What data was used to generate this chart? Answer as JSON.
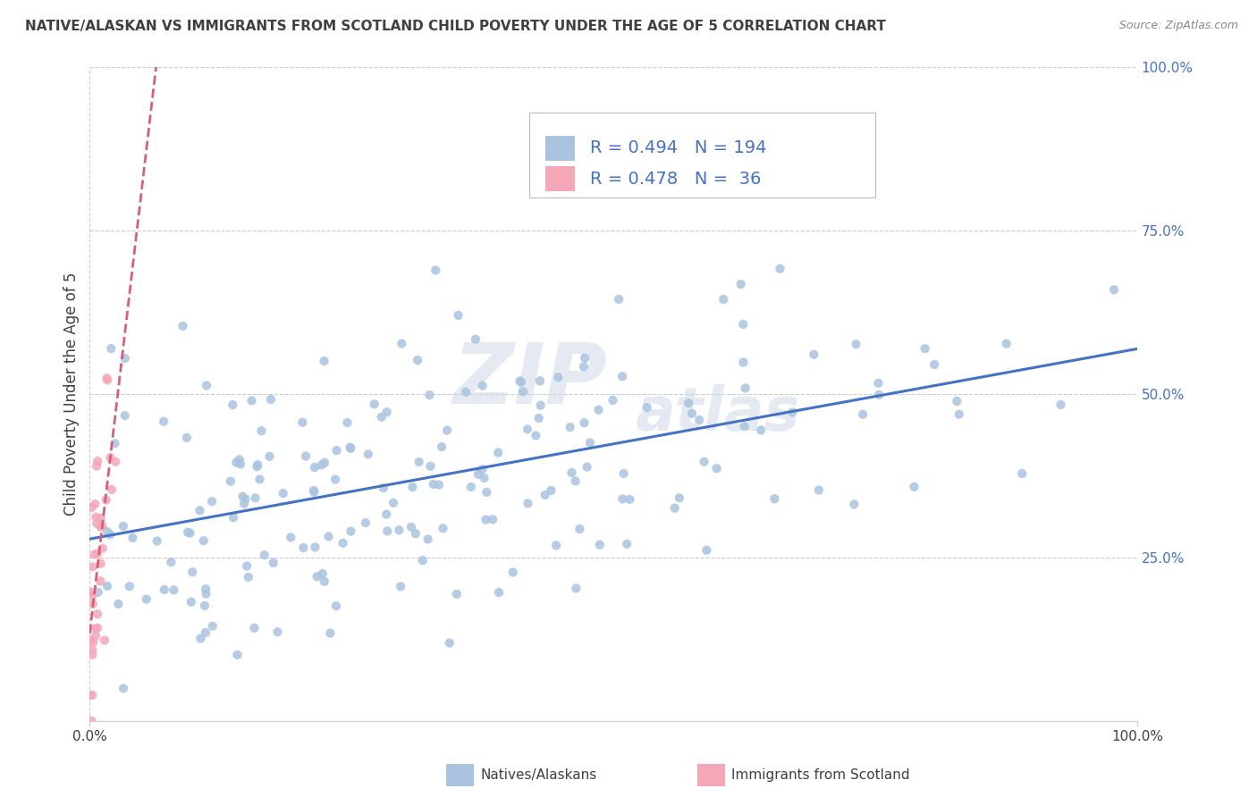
{
  "title": "NATIVE/ALASKAN VS IMMIGRANTS FROM SCOTLAND CHILD POVERTY UNDER THE AGE OF 5 CORRELATION CHART",
  "source": "Source: ZipAtlas.com",
  "ylabel": "Child Poverty Under the Age of 5",
  "xlim": [
    0.0,
    1.0
  ],
  "ylim": [
    0.0,
    1.0
  ],
  "legend1_R": "0.494",
  "legend1_N": "194",
  "legend2_R": "0.478",
  "legend2_N": " 36",
  "native_color": "#aac4e0",
  "immigrant_color": "#f4a7b9",
  "native_line_color": "#4472c4",
  "immigrant_line_color": "#d4607a",
  "watermark_zip": "ZIP",
  "watermark_atlas": "atlas",
  "background_color": "#ffffff",
  "grid_color": "#cccccc",
  "title_color": "#404040",
  "label_color": "#4472c4",
  "native_R": 0.494,
  "immigrant_R": 0.478,
  "seed": 42,
  "n_native": 194,
  "n_immigrant": 36
}
